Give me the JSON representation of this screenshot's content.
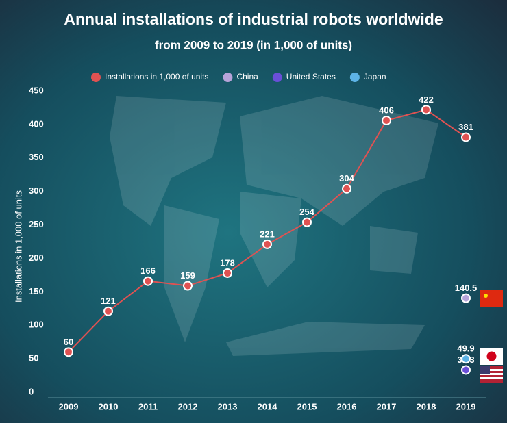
{
  "chart_data": {
    "type": "line",
    "title": "Annual installations of industrial robots worldwide",
    "subtitle": "from 2009 to 2019 (in 1,000 of units)",
    "y_label": "Installations in 1,000 of units",
    "categories": [
      "2009",
      "2010",
      "2011",
      "2012",
      "2013",
      "2014",
      "2015",
      "2016",
      "2017",
      "2018",
      "2019"
    ],
    "series": [
      {
        "name": "Installations in 1,000 of units",
        "color": "#e05252",
        "values": [
          60,
          121,
          166,
          159,
          178,
          221,
          254,
          304,
          406,
          422,
          381
        ]
      },
      {
        "name": "China",
        "color": "#b7a3d9",
        "values": [
          null,
          null,
          null,
          null,
          null,
          null,
          null,
          null,
          null,
          null,
          140.5
        ]
      },
      {
        "name": "United States",
        "color": "#6a4fd8",
        "values": [
          null,
          null,
          null,
          null,
          null,
          null,
          null,
          null,
          null,
          null,
          33.3
        ]
      },
      {
        "name": "Japan",
        "color": "#5db3e6",
        "values": [
          null,
          null,
          null,
          null,
          null,
          null,
          null,
          null,
          null,
          null,
          49.9
        ]
      }
    ],
    "ylim": [
      0,
      450
    ],
    "yticks": [
      0,
      50,
      100,
      150,
      200,
      250,
      300,
      350,
      400,
      450
    ],
    "grid": false
  }
}
